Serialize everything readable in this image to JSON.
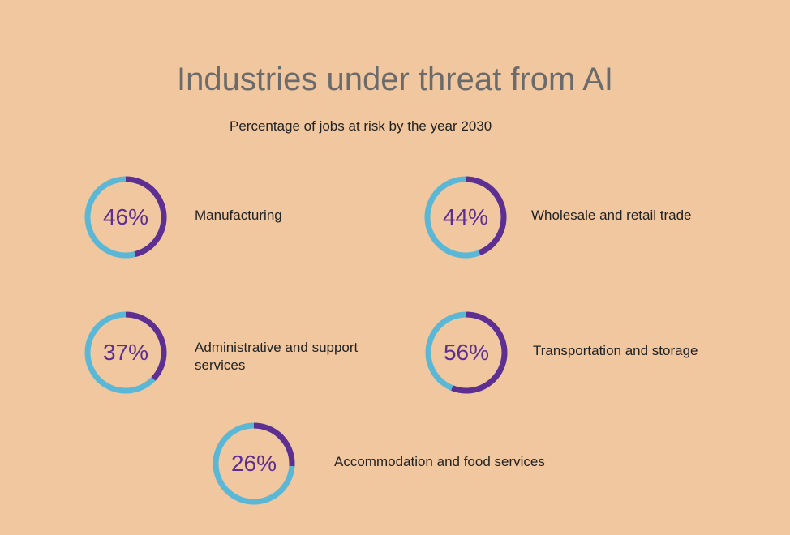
{
  "chart_data": {
    "type": "pie",
    "title": "Industries under threat from AI",
    "subtitle": "Percentage of jobs at risk by the year 2030",
    "colors": {
      "ring": "#5ab7d6",
      "highlight": "#5e2e91",
      "text": "#5e2e91"
    },
    "items": [
      {
        "label": "Manufacturing",
        "value": 46,
        "display": "46%"
      },
      {
        "label": "Wholesale and retail trade",
        "value": 44,
        "display": "44%"
      },
      {
        "label": "Administrative and support services",
        "value": 37,
        "display": "37%"
      },
      {
        "label": "Transportation and storage",
        "value": 56,
        "display": "56%"
      },
      {
        "label": "Accommodation and food services",
        "value": 26,
        "display": "26%"
      }
    ]
  }
}
